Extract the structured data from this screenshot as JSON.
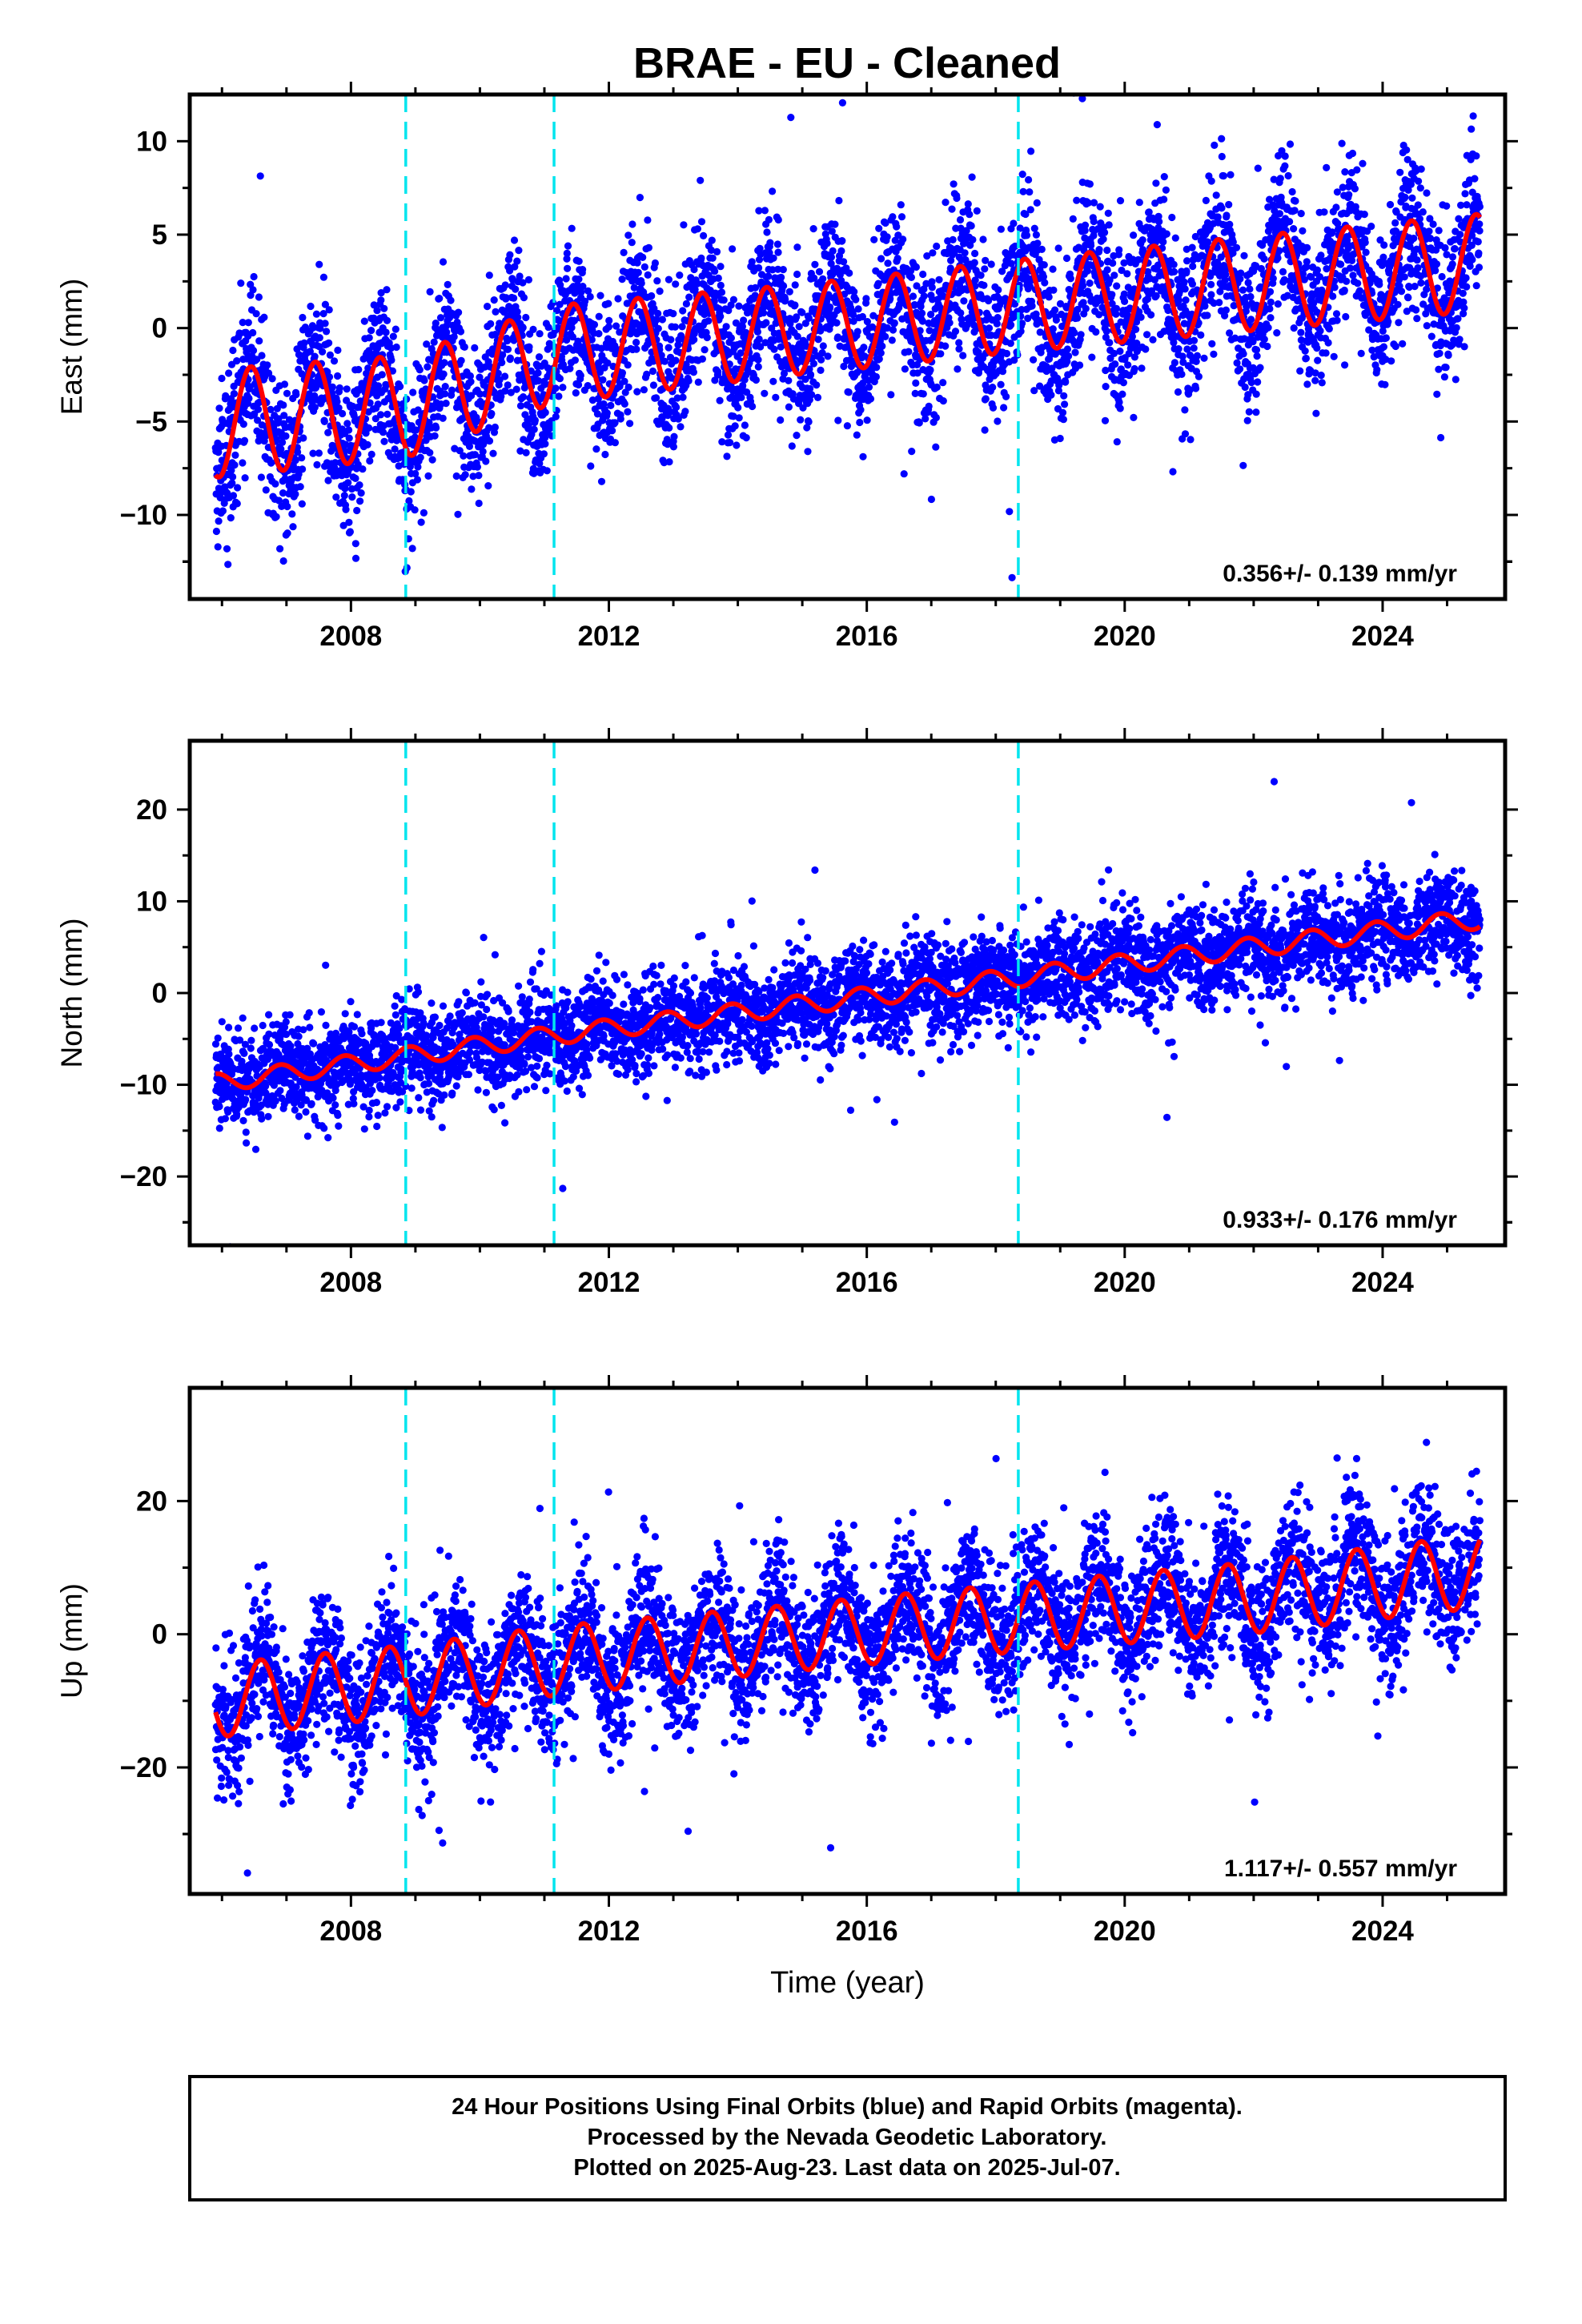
{
  "title": "BRAE  - EU - Cleaned",
  "chart_data": [
    {
      "type": "scatter",
      "panel": "east",
      "ylabel": "East (mm)",
      "xlabel": "",
      "xlim": [
        2005.5,
        2025.9
      ],
      "ylim": [
        -14.5,
        12.5
      ],
      "x_ticks": [
        2008,
        2012,
        2016,
        2020,
        2024
      ],
      "y_ticks": [
        -10,
        -5,
        0,
        5,
        10
      ],
      "rate_label": "0.356+/- 0.139 mm/yr",
      "offset_lines_x": [
        2008.85,
        2011.15,
        2018.35
      ],
      "data_start": 2005.9,
      "data_end": 2025.51,
      "model": {
        "trend_anchors": [
          [
            2005.9,
            -5.1
          ],
          [
            2008.85,
            -4.2
          ],
          [
            2011.15,
            -1.4
          ],
          [
            2016.0,
            0.3
          ],
          [
            2018.35,
            1.2
          ],
          [
            2022.0,
            2.4
          ],
          [
            2025.51,
            3.5
          ]
        ],
        "amplitude_anchors": [
          [
            2005.9,
            2.9
          ],
          [
            2015.0,
            2.4
          ],
          [
            2025.51,
            2.6
          ]
        ],
        "peak_phase": 0.45
      },
      "scatter_sigma": 2.1,
      "series": [
        {
          "name": "Final Orbits",
          "color": "#0000ff",
          "style": "points"
        },
        {
          "name": "Model",
          "color": "#ff0000",
          "style": "line"
        }
      ],
      "grid": false
    },
    {
      "type": "scatter",
      "panel": "north",
      "ylabel": "North (mm)",
      "xlabel": "",
      "xlim": [
        2005.5,
        2025.9
      ],
      "ylim": [
        -27.5,
        27.5
      ],
      "x_ticks": [
        2008,
        2012,
        2016,
        2020,
        2024
      ],
      "y_ticks": [
        -20,
        -10,
        0,
        10,
        20
      ],
      "rate_label": "0.933+/- 0.176 mm/yr",
      "offset_lines_x": [
        2008.85,
        2011.15,
        2018.35
      ],
      "data_start": 2005.9,
      "data_end": 2025.51,
      "model": {
        "trend_anchors": [
          [
            2005.9,
            -9.8
          ],
          [
            2008.85,
            -6.9
          ],
          [
            2011.15,
            -4.6
          ],
          [
            2016.0,
            -0.4
          ],
          [
            2018.35,
            1.7
          ],
          [
            2022.0,
            5.0
          ],
          [
            2025.51,
            8.1
          ]
        ],
        "amplitude_anchors": [
          [
            2005.9,
            1.0
          ],
          [
            2025.51,
            1.1
          ]
        ],
        "peak_phase": 0.9
      },
      "scatter_sigma": 2.6,
      "series": [
        {
          "name": "Final Orbits",
          "color": "#0000ff",
          "style": "points"
        },
        {
          "name": "Model",
          "color": "#ff0000",
          "style": "line"
        }
      ],
      "grid": false
    },
    {
      "type": "scatter",
      "panel": "up",
      "ylabel": "Up (mm)",
      "xlabel": "Time (year)",
      "xlim": [
        2005.5,
        2025.9
      ],
      "ylim": [
        -39.0,
        37.0
      ],
      "x_ticks": [
        2008,
        2012,
        2016,
        2020,
        2024
      ],
      "y_ticks": [
        -20,
        0,
        20
      ],
      "rate_label": "1.117+/- 0.557 mm/yr",
      "offset_lines_x": [
        2008.85,
        2011.15,
        2018.35
      ],
      "data_start": 2005.9,
      "data_end": 2025.51,
      "model": {
        "trend_anchors": [
          [
            2005.9,
            -10.0
          ],
          [
            2008.85,
            -7.0
          ],
          [
            2011.15,
            -4.0
          ],
          [
            2016.0,
            0.5
          ],
          [
            2018.35,
            2.5
          ],
          [
            2022.0,
            5.5
          ],
          [
            2025.51,
            9.5
          ]
        ],
        "amplitude_anchors": [
          [
            2005.9,
            5.5
          ],
          [
            2015.0,
            5.0
          ],
          [
            2025.51,
            5.5
          ]
        ],
        "peak_phase": 0.6
      },
      "scatter_sigma": 5.2,
      "series": [
        {
          "name": "Final Orbits",
          "color": "#0000ff",
          "style": "points"
        },
        {
          "name": "Model",
          "color": "#ff0000",
          "style": "line"
        }
      ],
      "grid": false
    }
  ],
  "footer": {
    "line1": "24 Hour Positions Using Final Orbits (blue) and Rapid Orbits (magenta).",
    "line2": "Processed by the Nevada Geodetic Laboratory.",
    "line3": "Plotted on 2025-Aug-23. Last data on 2025-Jul-07."
  },
  "colors": {
    "points": "#0000ff",
    "model": "#ff0000",
    "offset": "#00e5ee",
    "frame": "#000000"
  }
}
